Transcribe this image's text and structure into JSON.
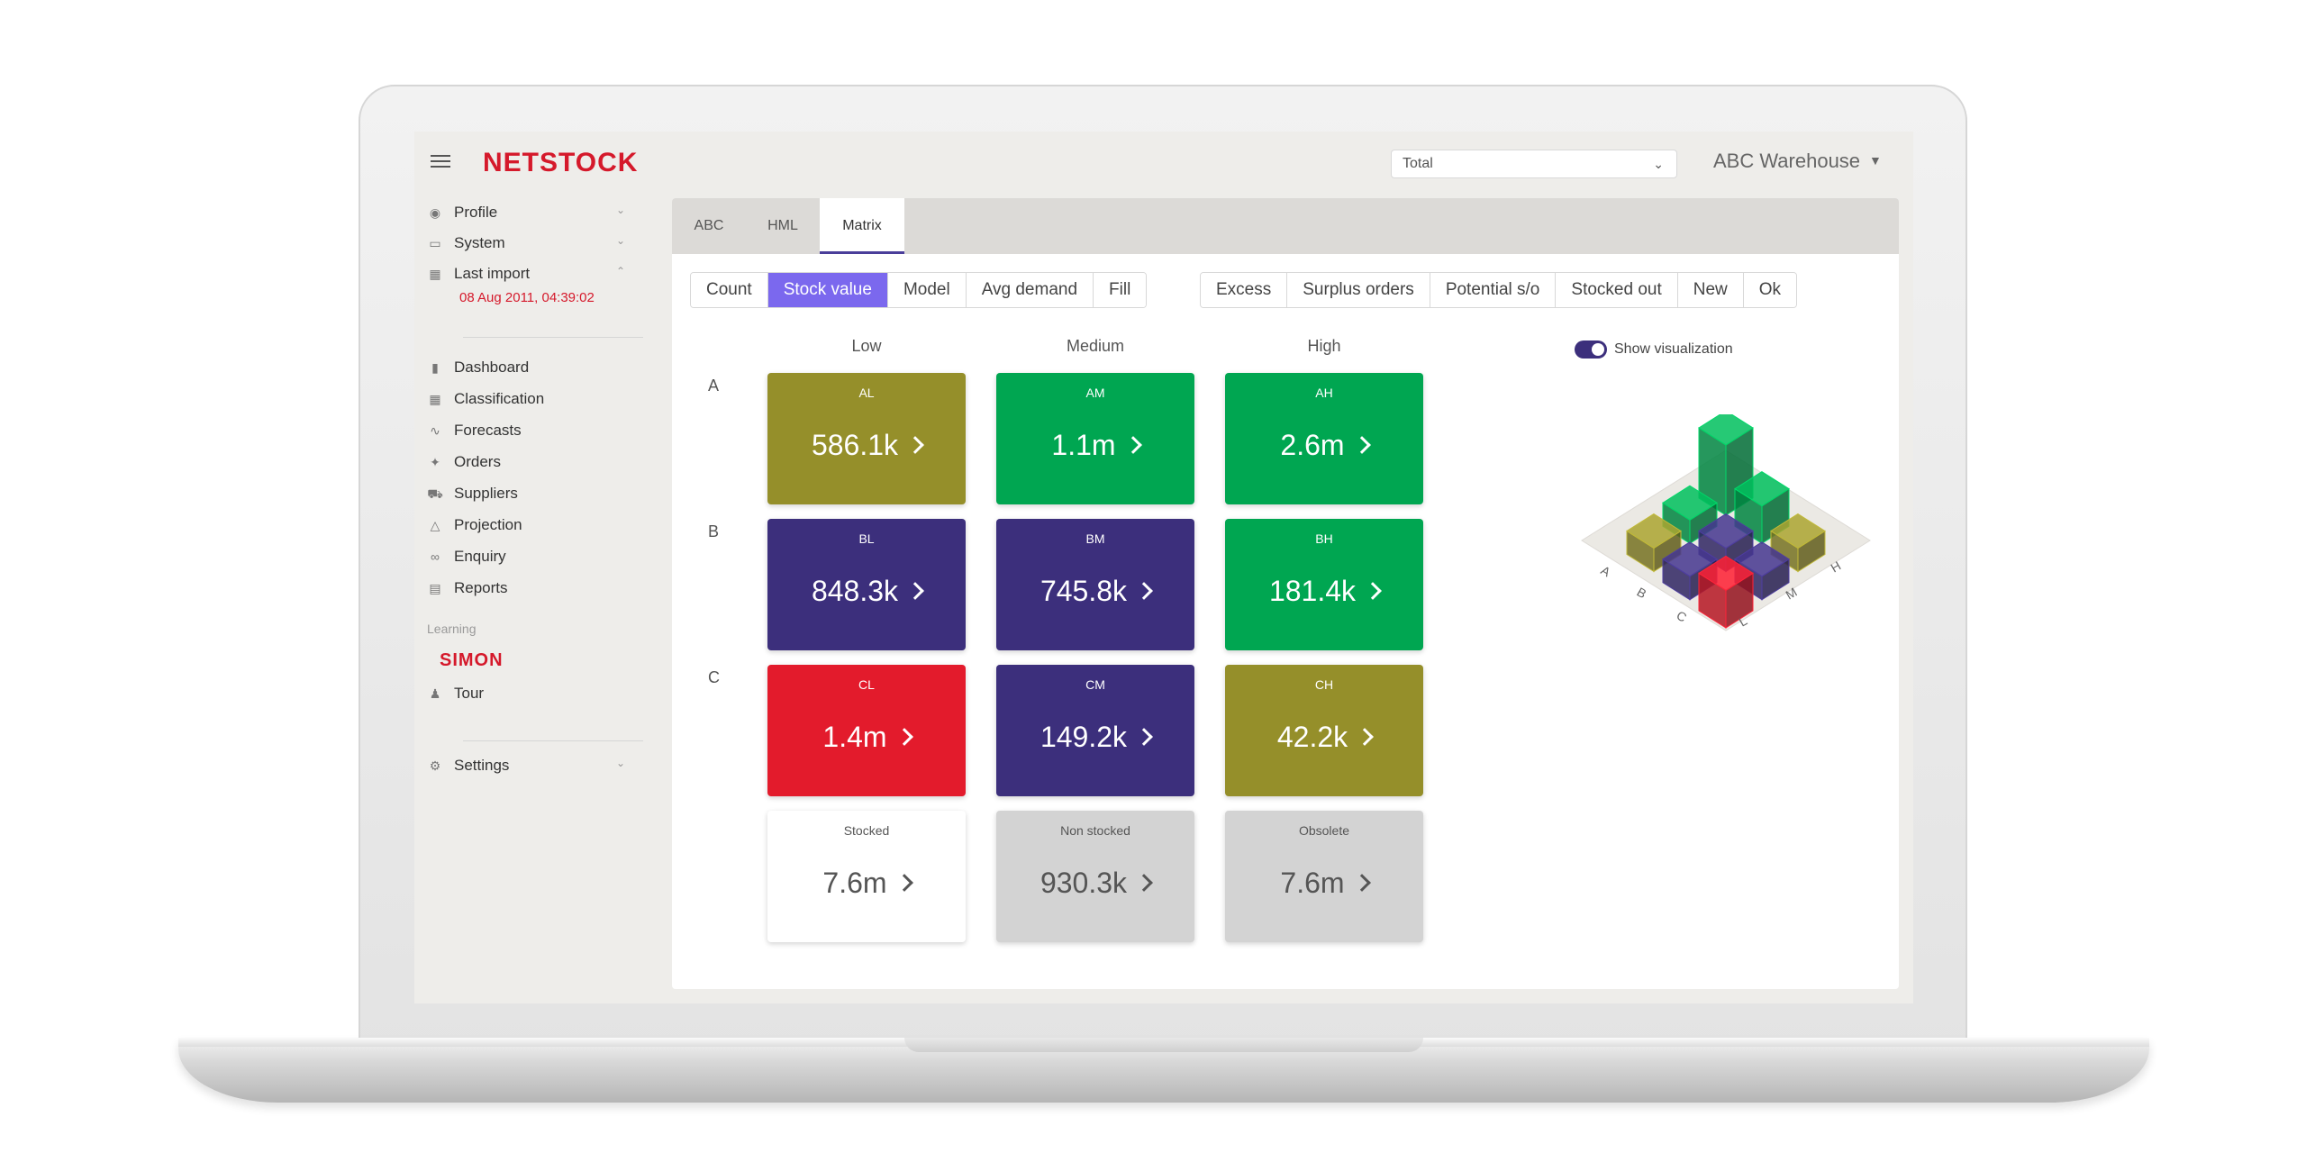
{
  "header": {
    "logo": "NETSTOCK",
    "select_value": "Total",
    "warehouse": "ABC Warehouse"
  },
  "sidebar": {
    "top_items": [
      {
        "label": "Profile",
        "icon": "user-circle-icon"
      },
      {
        "label": "System",
        "icon": "window-icon"
      },
      {
        "label": "Last import",
        "icon": "calendar-icon"
      }
    ],
    "last_import_date": "08 Aug 2011, 04:39:02",
    "main_items": [
      {
        "label": "Dashboard",
        "icon": "bar-chart-icon"
      },
      {
        "label": "Classification",
        "icon": "grid-icon"
      },
      {
        "label": "Forecasts",
        "icon": "line-chart-icon"
      },
      {
        "label": "Orders",
        "icon": "sparkle-icon"
      },
      {
        "label": "Suppliers",
        "icon": "truck-icon"
      },
      {
        "label": "Projection",
        "icon": "triangle-icon"
      },
      {
        "label": "Enquiry",
        "icon": "glasses-icon"
      },
      {
        "label": "Reports",
        "icon": "document-icon"
      }
    ],
    "learning_label": "Learning",
    "simon": "SIMON",
    "tour": "Tour",
    "settings": "Settings"
  },
  "tabs": [
    "ABC",
    "HML",
    "Matrix"
  ],
  "measure_buttons": [
    "Count",
    "Stock value",
    "Model",
    "Avg demand",
    "Fill"
  ],
  "filter_buttons": [
    "Excess",
    "Surplus orders",
    "Potential s/o",
    "Stocked out",
    "New",
    "Ok"
  ],
  "columns": [
    "Low",
    "Medium",
    "High"
  ],
  "rows": [
    "A",
    "B",
    "C"
  ],
  "tiles": {
    "AL": {
      "code": "AL",
      "value": "586.1k",
      "color": "#958f2a"
    },
    "AM": {
      "code": "AM",
      "value": "1.1m",
      "color": "#00a651"
    },
    "AH": {
      "code": "AH",
      "value": "2.6m",
      "color": "#00a651"
    },
    "BL": {
      "code": "BL",
      "value": "848.3k",
      "color": "#3c2f7c"
    },
    "BM": {
      "code": "BM",
      "value": "745.8k",
      "color": "#3c2f7c"
    },
    "BH": {
      "code": "BH",
      "value": "181.4k",
      "color": "#00a651"
    },
    "CL": {
      "code": "CL",
      "value": "1.4m",
      "color": "#e31b2c"
    },
    "CM": {
      "code": "CM",
      "value": "149.2k",
      "color": "#3c2f7c"
    },
    "CH": {
      "code": "CH",
      "value": "42.2k",
      "color": "#958f2a"
    },
    "stocked": {
      "code": "Stocked",
      "value": "7.6m",
      "color": "#ffffff"
    },
    "non_stocked": {
      "code": "Non stocked",
      "value": "930.3k",
      "color": "#d3d3d3"
    },
    "obsolete": {
      "code": "Obsolete",
      "value": "7.6m",
      "color": "#d3d3d3"
    }
  },
  "visualization": {
    "toggle_label": "Show visualization",
    "axis_labels_abc": [
      "A",
      "B",
      "C"
    ],
    "axis_labels_lmh": [
      "L",
      "M",
      "H"
    ]
  }
}
